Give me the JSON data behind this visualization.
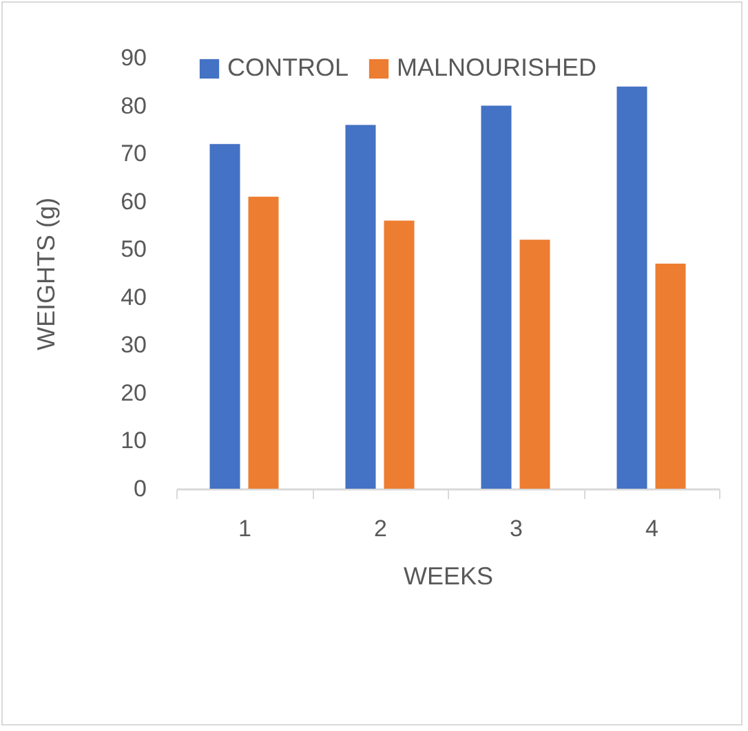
{
  "chart_data": {
    "type": "bar",
    "xlabel": "WEEKS",
    "ylabel": "WEIGHTS (g)",
    "categories": [
      "1",
      "2",
      "3",
      "4"
    ],
    "series": [
      {
        "name": "CONTROL",
        "color": "#4472c4",
        "values": [
          72,
          76,
          80,
          84
        ]
      },
      {
        "name": "MALNOURISHED",
        "color": "#ed7d31",
        "values": [
          61,
          56,
          52,
          47
        ]
      }
    ],
    "ylim": [
      0,
      90
    ],
    "yticks": [
      0,
      10,
      20,
      30,
      40,
      50,
      60,
      70,
      80,
      90
    ],
    "grid": false,
    "legend": "top"
  }
}
